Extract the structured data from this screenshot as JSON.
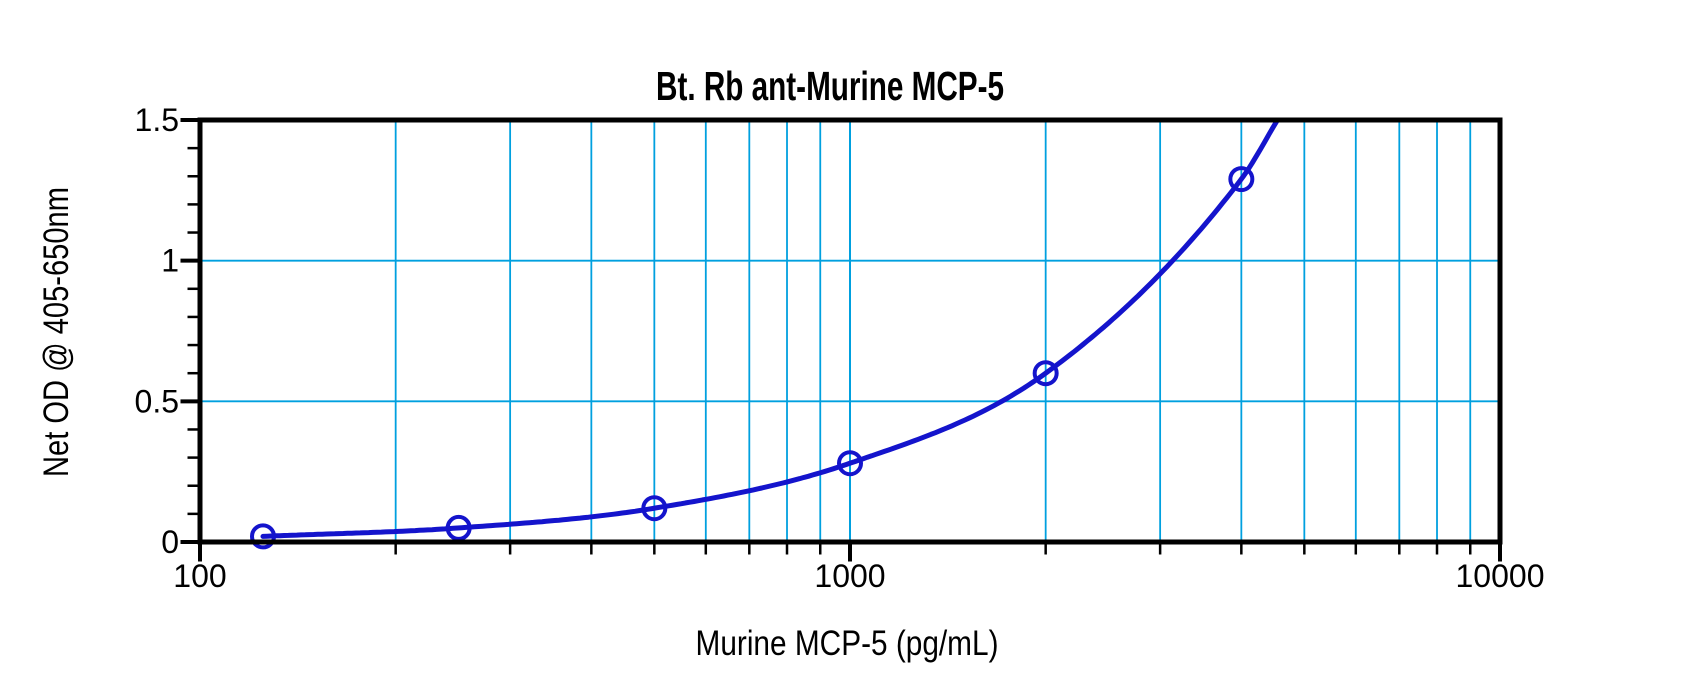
{
  "page": {
    "background": "#ffffff"
  },
  "chart_data": {
    "type": "line",
    "title": "Bt. Rb ant-Murine MCP-5",
    "xlabel": "Murine MCP-5 (pg/mL)",
    "ylabel": "Net OD @ 405-650nm",
    "x_scale": "log",
    "y_scale": "linear",
    "xlim": [
      100,
      10000
    ],
    "ylim": [
      0,
      1.5
    ],
    "grid": true,
    "legend": false,
    "marker": "open-circle",
    "x": [
      125,
      250,
      500,
      1000,
      2000,
      4000
    ],
    "y": [
      0.02,
      0.05,
      0.12,
      0.28,
      0.6,
      1.29
    ],
    "curve_extension_point": {
      "x": 4546,
      "y": 1.5
    },
    "x_major_ticks": [
      {
        "value": 100,
        "label": "100"
      },
      {
        "value": 1000,
        "label": "1000"
      },
      {
        "value": 10000,
        "label": "10000"
      }
    ],
    "x_minor_ticks": [
      200,
      300,
      400,
      500,
      600,
      700,
      800,
      900,
      2000,
      3000,
      4000,
      5000,
      6000,
      7000,
      8000,
      9000
    ],
    "y_major_ticks": [
      {
        "value": 0,
        "label": "0"
      },
      {
        "value": 0.5,
        "label": "0.5"
      },
      {
        "value": 1,
        "label": "1"
      },
      {
        "value": 1.5,
        "label": "1.5"
      }
    ],
    "y_minor_ticks": [
      0.1,
      0.2,
      0.3,
      0.4,
      0.6,
      0.7,
      0.8,
      0.9,
      1.1,
      1.2,
      1.3,
      1.4
    ],
    "colors": {
      "curve": "#1414cc",
      "marker": "#1414cc",
      "grid": "#00a0df",
      "axis": "#000000",
      "text": "#000000",
      "background": "#ffffff"
    }
  }
}
